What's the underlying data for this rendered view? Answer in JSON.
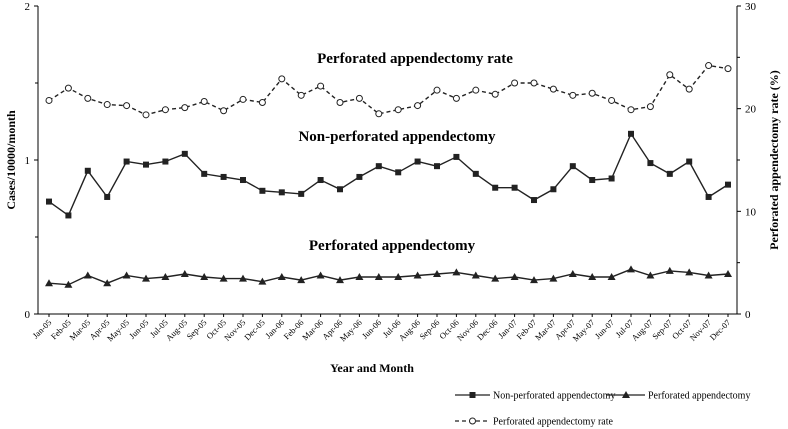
{
  "chart_data": {
    "type": "line",
    "categories": [
      "Jan-05",
      "Feb-05",
      "Mar-05",
      "Apr-05",
      "May-05",
      "Jun-05",
      "Jul-05",
      "Aug-05",
      "Sep-05",
      "Oct-05",
      "Nov-05",
      "Dec-05",
      "Jan-06",
      "Feb-06",
      "Mar-06",
      "Apr-06",
      "May-06",
      "Jun-06",
      "Jul-06",
      "Aug-06",
      "Sep-06",
      "Oct-06",
      "Nov-06",
      "Dec-06",
      "Jan-07",
      "Feb-07",
      "Mar-07",
      "Apr-07",
      "May-07",
      "Jun-07",
      "Jul-07",
      "Aug-07",
      "Sep-07",
      "Oct-07",
      "Nov-07",
      "Dec-07"
    ],
    "xlabel": "Year and Month",
    "ylabel": "Cases/10000/month",
    "ylabel_right": "Perforated appendectomy rate (%)",
    "ylim": [
      0,
      2
    ],
    "yticks": [
      "0",
      "1",
      "2"
    ],
    "ylim_right": [
      0,
      30
    ],
    "yticks_right": [
      "0",
      "10",
      "20",
      "30"
    ],
    "series": [
      {
        "name": "Non-perforated appendectomy",
        "axis": "left",
        "marker": "square",
        "line": "solid",
        "values": [
          0.73,
          0.64,
          0.93,
          0.76,
          0.99,
          0.97,
          0.99,
          1.04,
          0.91,
          0.89,
          0.87,
          0.8,
          0.79,
          0.78,
          0.87,
          0.81,
          0.89,
          0.96,
          0.92,
          0.99,
          0.96,
          1.02,
          0.91,
          0.82,
          0.82,
          0.74,
          0.81,
          0.96,
          0.87,
          0.88,
          1.17,
          0.98,
          0.91,
          0.99,
          0.76,
          0.84
        ]
      },
      {
        "name": "Perforated appendectomy",
        "axis": "left",
        "marker": "triangle",
        "line": "solid",
        "values": [
          0.2,
          0.19,
          0.25,
          0.2,
          0.25,
          0.23,
          0.24,
          0.26,
          0.24,
          0.23,
          0.23,
          0.21,
          0.24,
          0.22,
          0.25,
          0.22,
          0.24,
          0.24,
          0.24,
          0.25,
          0.26,
          0.27,
          0.25,
          0.23,
          0.24,
          0.22,
          0.23,
          0.26,
          0.24,
          0.24,
          0.29,
          0.25,
          0.28,
          0.27,
          0.25,
          0.26
        ]
      },
      {
        "name": "Perforated appendectomy rate",
        "axis": "right",
        "marker": "open-circle",
        "line": "dashed",
        "values": [
          20.8,
          22.0,
          21.0,
          20.4,
          20.3,
          19.4,
          19.9,
          20.1,
          20.7,
          19.8,
          20.9,
          20.6,
          22.9,
          21.3,
          22.2,
          20.6,
          21.0,
          19.5,
          19.9,
          20.3,
          21.8,
          21.0,
          21.8,
          21.4,
          22.5,
          22.5,
          21.9,
          21.3,
          21.5,
          20.8,
          19.9,
          20.2,
          23.3,
          21.9,
          24.2,
          23.9
        ]
      }
    ],
    "annotations": [
      {
        "text": "Perforated appendectomy rate"
      },
      {
        "text": "Non-perforated appendectomy"
      },
      {
        "text": "Perforated appendectomy"
      }
    ],
    "legend": {
      "position": "bottom-right",
      "entries": [
        "Non-perforated appendectomy",
        "Perforated appendectomy",
        "Perforated appendectomy rate"
      ]
    },
    "grid": false
  }
}
